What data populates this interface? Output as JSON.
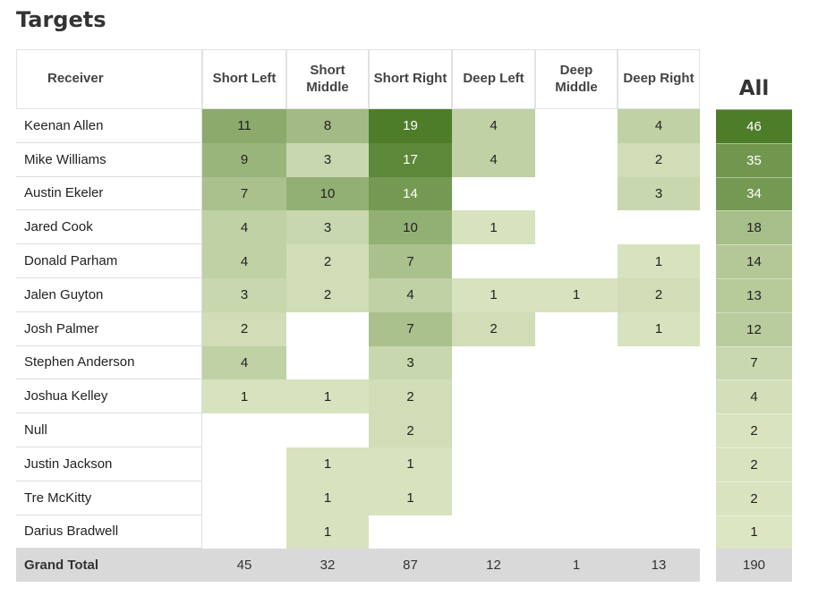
{
  "title": "Targets",
  "table": {
    "columns": [
      "Receiver",
      "Short Left",
      "Short Middle",
      "Short Right",
      "Deep Left",
      "Deep Middle",
      "Deep Right"
    ],
    "rows": [
      {
        "receiver": "Keenan Allen",
        "values": [
          11,
          8,
          19,
          4,
          null,
          4
        ]
      },
      {
        "receiver": "Mike Williams",
        "values": [
          9,
          3,
          17,
          4,
          null,
          2
        ]
      },
      {
        "receiver": "Austin Ekeler",
        "values": [
          7,
          10,
          14,
          null,
          null,
          3
        ]
      },
      {
        "receiver": "Jared Cook",
        "values": [
          4,
          3,
          10,
          1,
          null,
          null
        ]
      },
      {
        "receiver": "Donald Parham",
        "values": [
          4,
          2,
          7,
          null,
          null,
          1
        ]
      },
      {
        "receiver": "Jalen Guyton",
        "values": [
          3,
          2,
          4,
          1,
          1,
          2
        ]
      },
      {
        "receiver": "Josh Palmer",
        "values": [
          2,
          null,
          7,
          2,
          null,
          1
        ]
      },
      {
        "receiver": "Stephen Anderson",
        "values": [
          4,
          null,
          3,
          null,
          null,
          null
        ]
      },
      {
        "receiver": "Joshua Kelley",
        "values": [
          1,
          1,
          2,
          null,
          null,
          null
        ]
      },
      {
        "receiver": "Null",
        "values": [
          null,
          null,
          2,
          null,
          null,
          null
        ]
      },
      {
        "receiver": "Justin Jackson",
        "values": [
          null,
          1,
          1,
          null,
          null,
          null
        ]
      },
      {
        "receiver": "Tre McKitty",
        "values": [
          null,
          1,
          1,
          null,
          null,
          null
        ]
      },
      {
        "receiver": "Darius Bradwell",
        "values": [
          null,
          1,
          null,
          null,
          null,
          null
        ]
      }
    ],
    "total": {
      "label": "Grand Total",
      "values": [
        45,
        32,
        87,
        12,
        1,
        13
      ]
    }
  },
  "all": {
    "header": "All",
    "values": [
      46,
      35,
      34,
      18,
      14,
      13,
      12,
      7,
      4,
      2,
      2,
      2,
      1
    ],
    "total": 190
  }
}
